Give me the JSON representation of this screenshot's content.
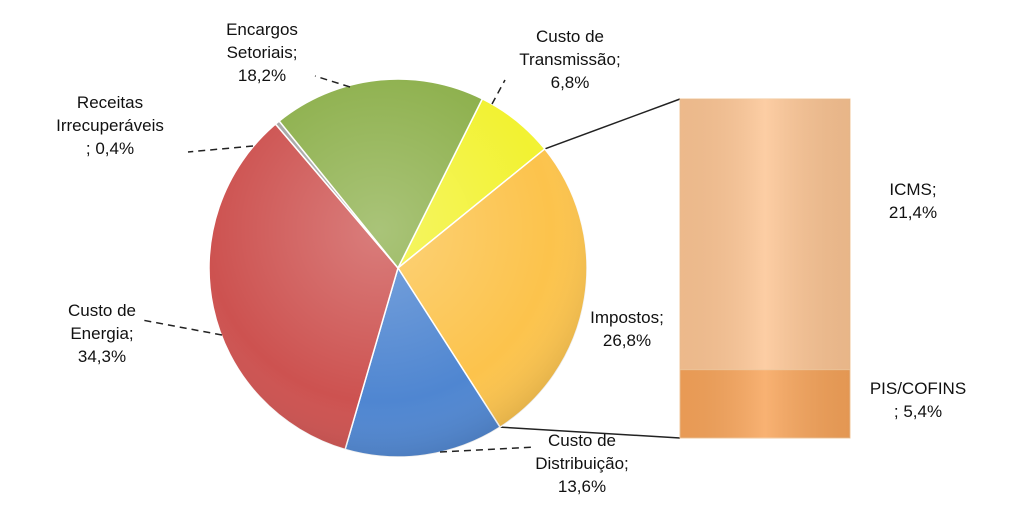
{
  "chart_data": {
    "type": "pie",
    "subtype": "pie-of-bar",
    "slices": [
      {
        "key": "transmissao",
        "label_lines": [
          "Custo de",
          "Transmissão;",
          "6,8%"
        ],
        "value": 6.8,
        "color": "#f2f232"
      },
      {
        "key": "impostos",
        "label_lines": [
          "Impostos;",
          "26,8%"
        ],
        "value": 26.8,
        "color": "#fcc34c",
        "exploded_to_bar": true
      },
      {
        "key": "distribuicao",
        "label_lines": [
          "Custo de",
          "Distribuição;",
          "13,6%"
        ],
        "value": 13.6,
        "color": "#4f86d1"
      },
      {
        "key": "energia",
        "label_lines": [
          "Custo de",
          "Energia;",
          "34,3%"
        ],
        "value": 34.3,
        "color": "#cd5250"
      },
      {
        "key": "receitas",
        "label_lines": [
          "Receitas",
          "Irrecuperáveis",
          "; 0,4%"
        ],
        "value": 0.4,
        "color": "#a6a6a6"
      },
      {
        "key": "encargos",
        "label_lines": [
          "Encargos",
          "Setoriais;",
          "18,2%"
        ],
        "value": 18.2,
        "color": "#8db04c"
      }
    ],
    "bar": {
      "segments": [
        {
          "key": "icms",
          "label_lines": [
            "ICMS;",
            "21,4%"
          ],
          "value": 21.4,
          "color": "#fcc594"
        },
        {
          "key": "pis",
          "label_lines": [
            "PIS/COFINS",
            "; 5,4%"
          ],
          "value": 5.4,
          "color": "#f7a45a"
        }
      ]
    },
    "title": "",
    "legend": "none"
  }
}
